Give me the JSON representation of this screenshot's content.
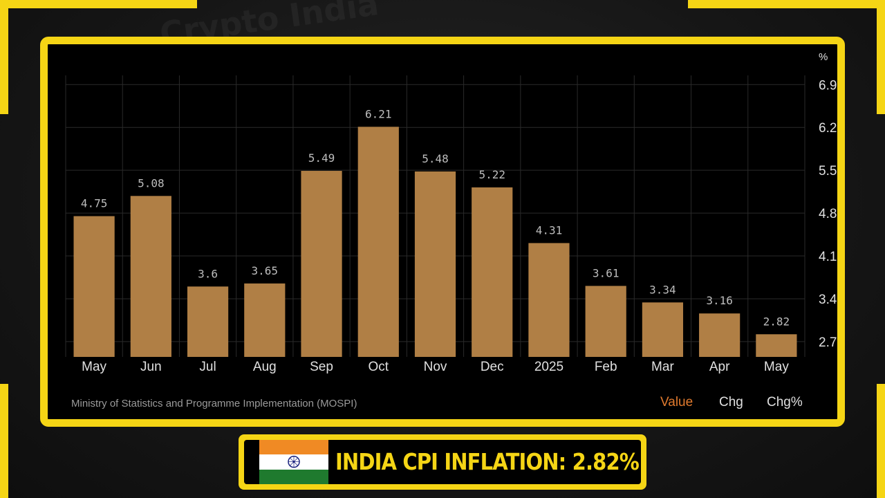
{
  "colors": {
    "accent": "#f5d515",
    "bar": "#b07f45",
    "background": "#000000",
    "grid": "#2a2a2a",
    "axis_text": "#e0e0e0",
    "legend_active": "#e07a2e"
  },
  "chart_data": {
    "type": "bar",
    "title": "",
    "categories": [
      "May",
      "Jun",
      "Jul",
      "Aug",
      "Sep",
      "Oct",
      "Nov",
      "Dec",
      "2025",
      "Feb",
      "Mar",
      "Apr",
      "May"
    ],
    "values": [
      4.75,
      5.08,
      3.6,
      3.65,
      5.49,
      6.21,
      5.48,
      5.22,
      4.31,
      3.61,
      3.34,
      3.16,
      2.82
    ],
    "data_labels": [
      "4.75",
      "5.08",
      "3.6",
      "3.65",
      "5.49",
      "6.21",
      "5.48",
      "5.22",
      "4.31",
      "3.61",
      "3.34",
      "3.16",
      "2.82"
    ],
    "y_unit_label": "%",
    "y_ticks": [
      "2.7",
      "3.4",
      "4.1",
      "4.8",
      "5.5",
      "6.2",
      "6.9"
    ],
    "ylim": [
      2.45,
      7.05
    ],
    "y_axis_side": "right",
    "grid": true,
    "xlabel": "",
    "ylabel": "%"
  },
  "source": "Ministry of Statistics and Programme Implementation (MOSPI)",
  "legend": {
    "value": "Value",
    "chg": "Chg",
    "chg_pct": "Chg%"
  },
  "banner": {
    "headline": "INDIA CPI INFLATION: 2.82%",
    "flag_icon": "india-flag-icon"
  },
  "watermark": {
    "text": "Crypto India"
  }
}
